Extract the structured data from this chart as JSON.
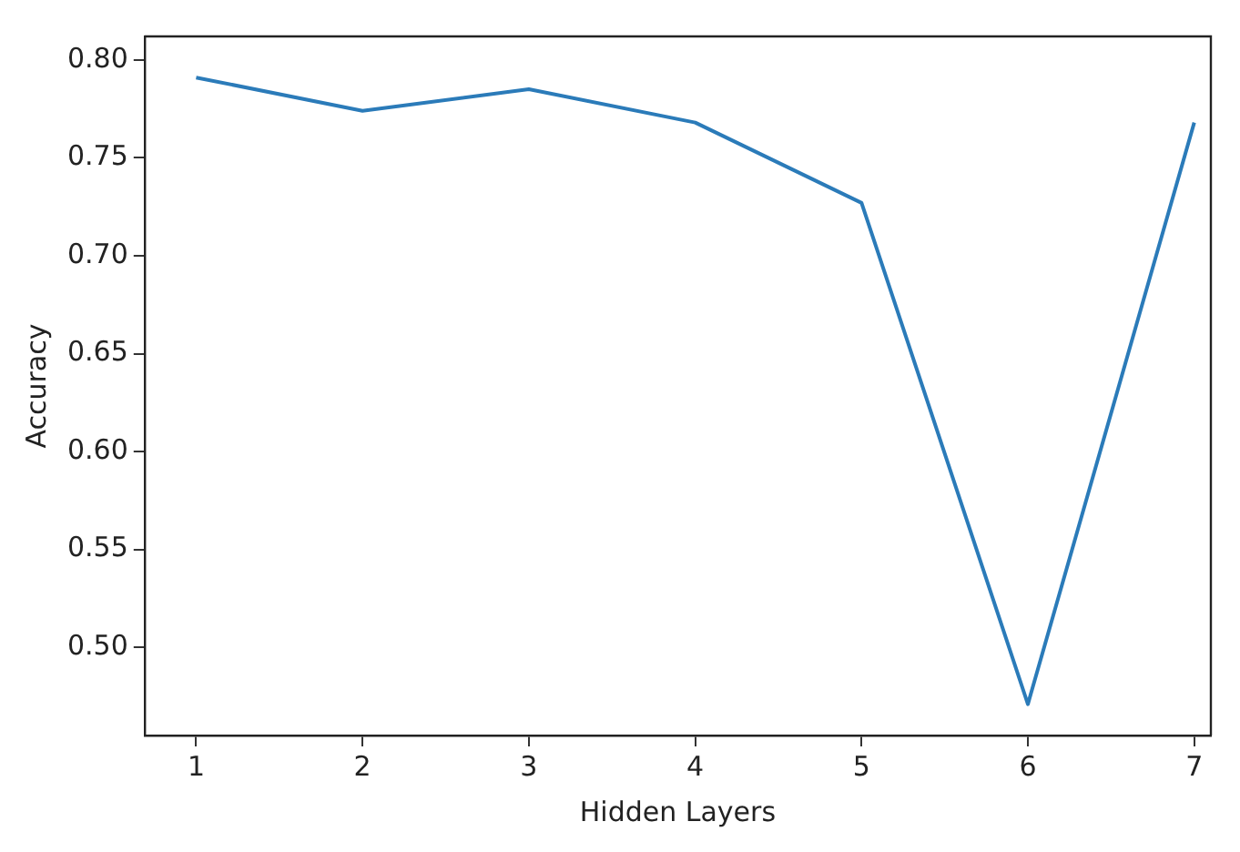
{
  "chart_data": {
    "type": "line",
    "xlabel": "Hidden Layers",
    "ylabel": "Accuracy",
    "x": [
      1,
      2,
      3,
      4,
      5,
      6,
      7
    ],
    "series": [
      {
        "color": "#2b7bb9",
        "values": [
          0.791,
          0.774,
          0.785,
          0.768,
          0.727,
          0.471,
          0.768
        ]
      }
    ],
    "xlim": [
      0.69,
      7.1
    ],
    "ylim": [
      0.455,
      0.812
    ],
    "xticks": [
      1,
      2,
      3,
      4,
      5,
      6,
      7
    ],
    "yticks": [
      {
        "value": 0.5,
        "label": "0.50"
      },
      {
        "value": 0.55,
        "label": "0.55"
      },
      {
        "value": 0.6,
        "label": "0.60"
      },
      {
        "value": 0.65,
        "label": "0.65"
      },
      {
        "value": 0.7,
        "label": "0.70"
      },
      {
        "value": 0.75,
        "label": "0.75"
      },
      {
        "value": 0.8,
        "label": "0.80"
      }
    ],
    "grid": false,
    "legend": false,
    "marker": "none",
    "line_style": "solid"
  }
}
